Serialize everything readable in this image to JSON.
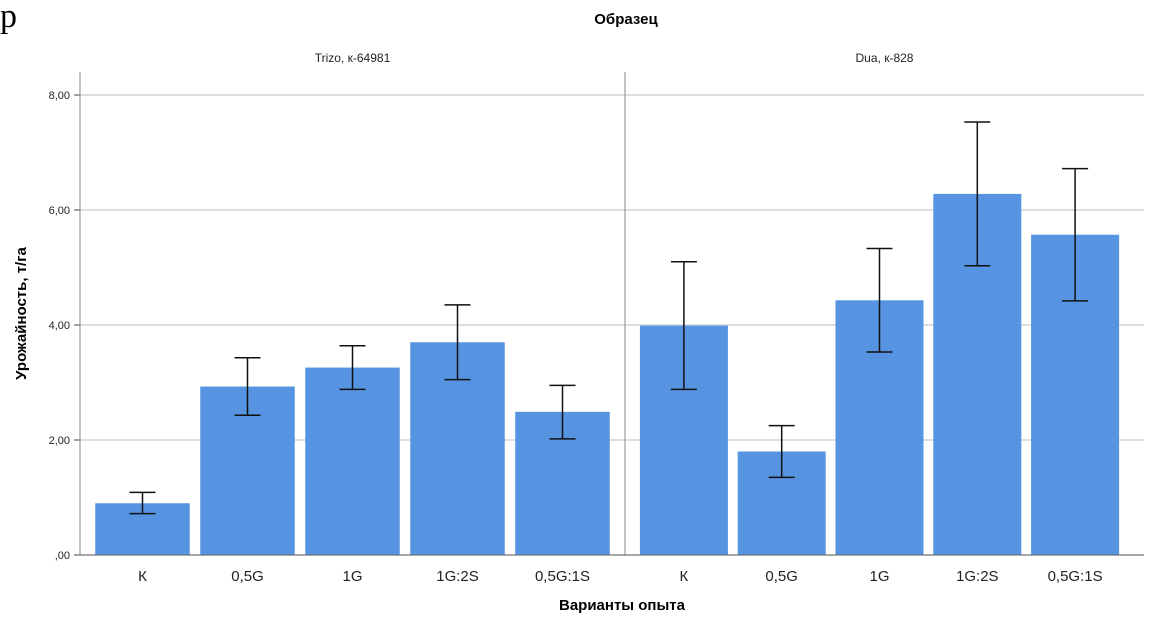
{
  "corner_text": "p",
  "chart_data": {
    "type": "bar",
    "title": "Образец",
    "xlabel": "Варианты опыта",
    "ylabel": "Урожайность, т/га",
    "ylim": [
      0,
      8.4
    ],
    "yticks": [
      0,
      2,
      4,
      6,
      8
    ],
    "ytick_labels": [
      ",00",
      "2,00",
      "4,00",
      "6,00",
      "8,00"
    ],
    "grid": true,
    "error_bars": true,
    "bar_color": "#5694e2",
    "categories": [
      "К",
      "0,5G",
      "1G",
      "1G:2S",
      "0,5G:1S"
    ],
    "panels": [
      {
        "name": "Trizo, к-64981",
        "values": [
          0.9,
          2.93,
          3.26,
          3.7,
          2.49
        ],
        "err_low": [
          0.72,
          2.43,
          2.88,
          3.05,
          2.02
        ],
        "err_high": [
          1.09,
          3.43,
          3.64,
          4.35,
          2.95
        ]
      },
      {
        "name": "Dua, к-828",
        "values": [
          3.99,
          1.8,
          4.43,
          6.28,
          5.57
        ],
        "err_low": [
          2.88,
          1.35,
          3.53,
          5.03,
          4.42
        ],
        "err_high": [
          5.1,
          2.25,
          5.33,
          7.53,
          6.72
        ]
      }
    ]
  }
}
